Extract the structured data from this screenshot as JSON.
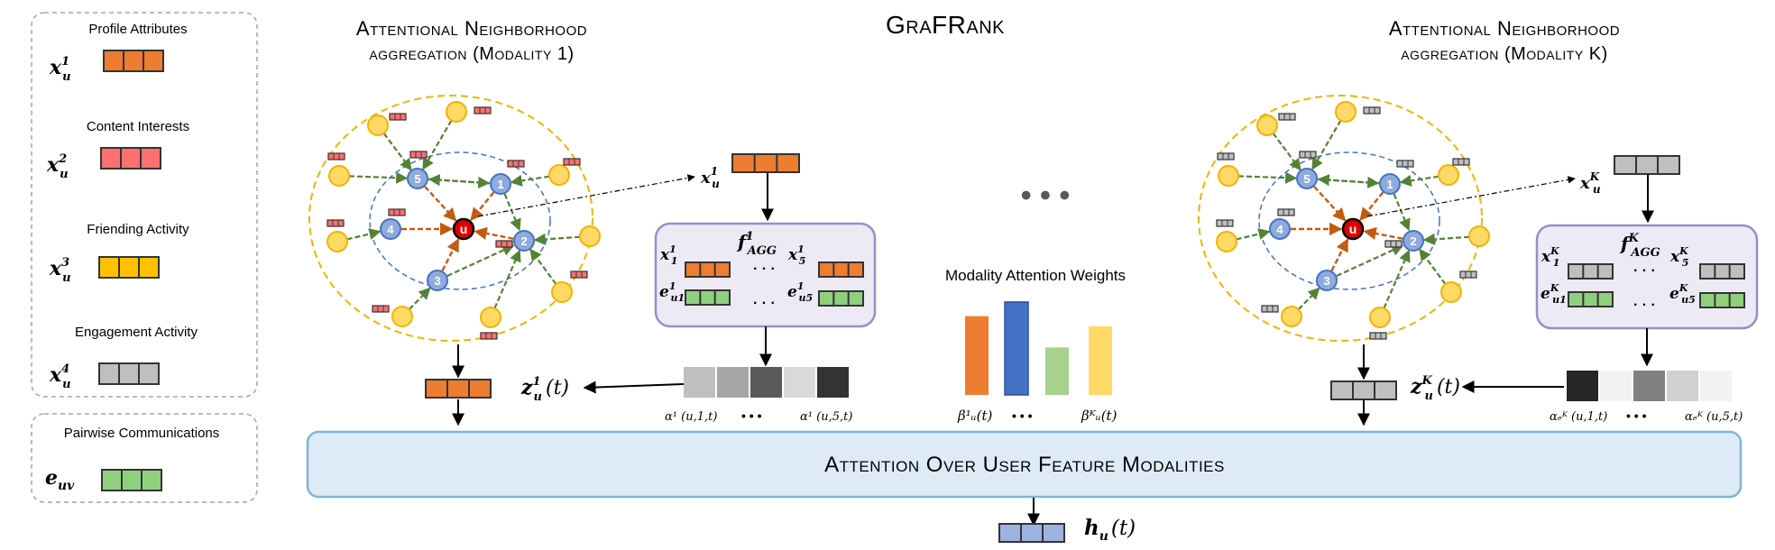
{
  "title": "GraFRank",
  "legend": {
    "items": [
      {
        "label": "Profile Attributes",
        "symbol_base": "x",
        "symbol_sub": "u",
        "symbol_sup": "1",
        "color": "#ED7D31"
      },
      {
        "label": "Content Interests",
        "symbol_base": "x",
        "symbol_sub": "u",
        "symbol_sup": "2",
        "color": "#FF7070"
      },
      {
        "label": "Friending Activity",
        "symbol_base": "x",
        "symbol_sub": "u",
        "symbol_sup": "3",
        "color": "#FFC000"
      },
      {
        "label": "Engagement Activity",
        "symbol_base": "x",
        "symbol_sub": "u",
        "symbol_sup": "4",
        "color": "#BFBFBF"
      }
    ],
    "pairwise": {
      "label": "Pairwise Communications",
      "symbol_base": "e",
      "symbol_sub": "uv",
      "color": "#8FD07F"
    }
  },
  "left_module": {
    "title_line1": "Attentional Neighborhood",
    "title_line2": "aggregation (Modality 1)",
    "graph": {
      "center": "u",
      "nodes": [
        "1",
        "2",
        "3",
        "4",
        "5"
      ]
    },
    "input_label_base": "x",
    "input_label_sub": "u",
    "input_label_sup": "1",
    "input_color": "#ED7D31",
    "agg": {
      "func_base": "f",
      "func_sup": "1",
      "func_sub": "AGG",
      "x_first_base": "x",
      "x_first_sub": "1",
      "x_first_sup": "1",
      "x_last_base": "x",
      "x_last_sub": "5",
      "x_last_sup": "1",
      "e_first_base": "e",
      "e_first_sub": "u1",
      "e_first_sup": "1",
      "e_last_base": "e",
      "e_last_sub": "u5",
      "e_last_sup": "1",
      "feature_color": "#ED7D31",
      "edge_color": "#8FD07F"
    },
    "attention_colors": [
      "#BFBFBF",
      "#A6A6A6",
      "#595959",
      "#D9D9D9",
      "#333333"
    ],
    "att_first": "α¹ (u,1,t)",
    "att_last": "α¹ (u,5,t)",
    "output_base": "z",
    "output_sub": "u",
    "output_sup": "1",
    "output_arg": "(t)"
  },
  "right_module": {
    "title_line1": "Attentional Neighborhood",
    "title_line2": "aggregation (Modality K)",
    "graph": {
      "center": "u",
      "nodes": [
        "1",
        "2",
        "3",
        "4",
        "5"
      ]
    },
    "input_label_base": "x",
    "input_label_sub": "u",
    "input_label_sup": "K",
    "input_color": "#BFBFBF",
    "agg": {
      "func_base": "f",
      "func_sup": "K",
      "func_sub": "AGG",
      "x_first_base": "x",
      "x_first_sub": "1",
      "x_first_sup": "K",
      "x_last_base": "x",
      "x_last_sub": "5",
      "x_last_sup": "K",
      "e_first_base": "e",
      "e_first_sub": "u1",
      "e_first_sup": "K",
      "e_last_base": "e",
      "e_last_sub": "u5",
      "e_last_sup": "K",
      "feature_color": "#BFBFBF",
      "edge_color": "#8FD07F"
    },
    "attention_colors": [
      "#262626",
      "#F2F2F2",
      "#808080",
      "#D0D0D0",
      "#F2F2F2"
    ],
    "att_first": "αₑᴷ (u,1,t)",
    "att_last": "αₑᴷ (u,5,t)",
    "output_base": "z",
    "output_sub": "u",
    "output_sup": "K",
    "output_arg": "(t)"
  },
  "ellipsis_between": "• • •",
  "modality_weights": {
    "title": "Modality Attention Weights",
    "first_label": "β¹ᵤ(t)",
    "last_label": "βᴷᵤ(t)",
    "dots": "• • •",
    "bars": [
      {
        "value": 0.78,
        "color": "#ED7D31"
      },
      {
        "value": 0.92,
        "color": "#4472C4"
      },
      {
        "value": 0.47,
        "color": "#A9D18E"
      },
      {
        "value": 0.68,
        "color": "#FFD966"
      }
    ]
  },
  "attention_box": {
    "label": "Attention Over User Feature Modalities",
    "bg": "#DEEBF7",
    "border": "#7FB4D8"
  },
  "final_output": {
    "base": "h",
    "sub": "u",
    "arg": "(t)",
    "color": "#9DB3DF"
  }
}
